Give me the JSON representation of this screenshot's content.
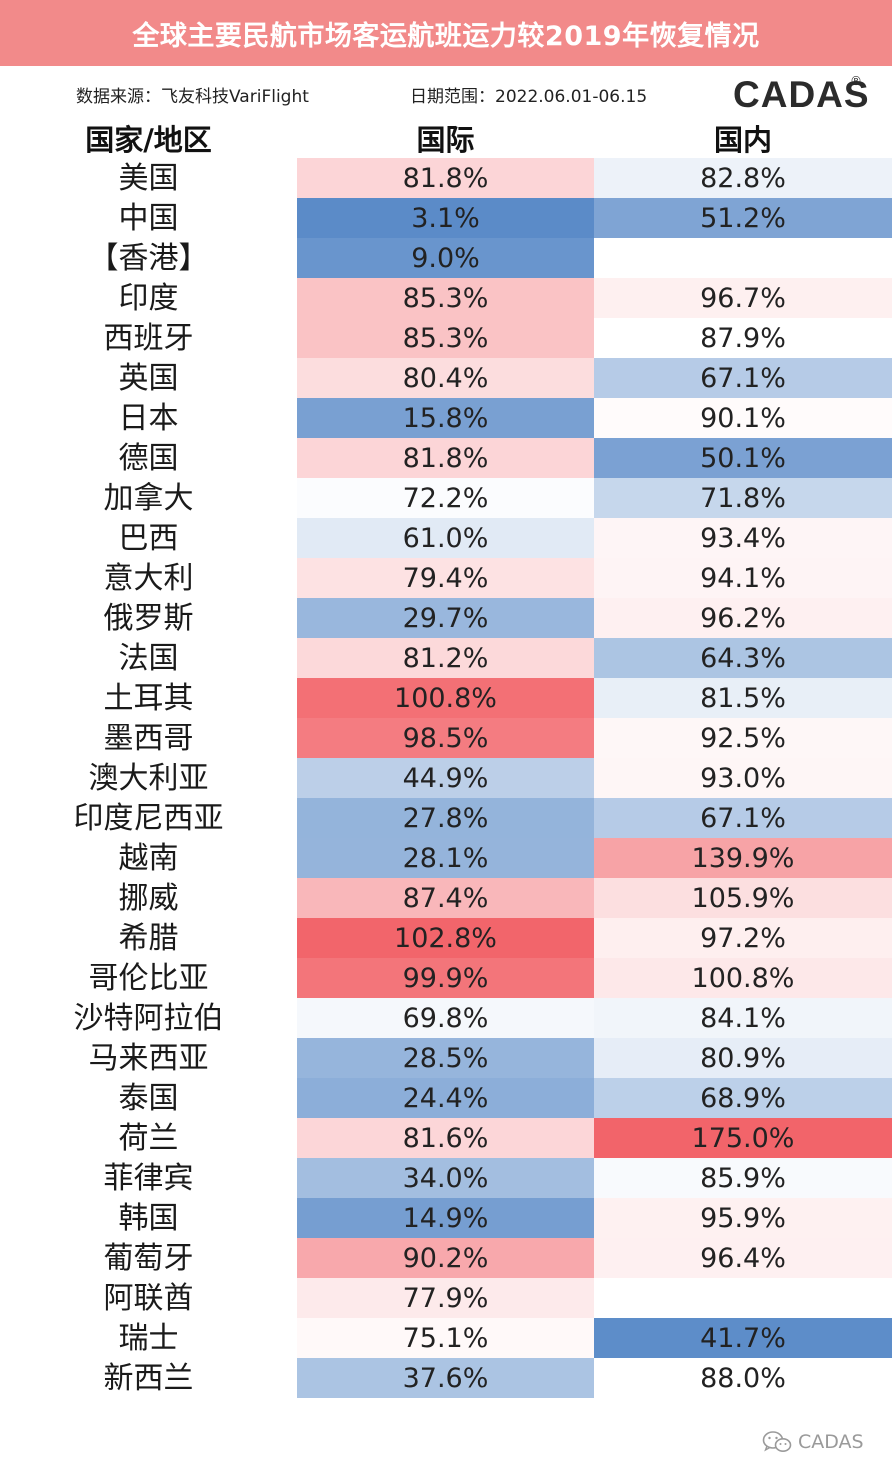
{
  "title": "全球主要民航市场客运航班运力较2019年恢复情况",
  "source": "数据来源：飞友科技VariFlight",
  "date_range": "日期范围：2022.06.01-06.15",
  "logo": {
    "text": "CADAS",
    "registered": "®"
  },
  "watermark": "CADAS",
  "colors": {
    "title_bg": "#f28a8a",
    "scale_low": "#5b8bc8",
    "scale_mid": "#ffffff",
    "scale_high": "#f2646a"
  },
  "chart_data": {
    "type": "table",
    "columns": [
      "国家/地区",
      "国际",
      "国内"
    ],
    "rows": [
      {
        "region": "美国",
        "intl": "81.8%",
        "dom": "82.8%"
      },
      {
        "region": "中国",
        "intl": "3.1%",
        "dom": "51.2%"
      },
      {
        "region": "【香港】",
        "intl": "9.0%",
        "dom": ""
      },
      {
        "region": "印度",
        "intl": "85.3%",
        "dom": "96.7%"
      },
      {
        "region": "西班牙",
        "intl": "85.3%",
        "dom": "87.9%"
      },
      {
        "region": "英国",
        "intl": "80.4%",
        "dom": "67.1%"
      },
      {
        "region": "日本",
        "intl": "15.8%",
        "dom": "90.1%"
      },
      {
        "region": "德国",
        "intl": "81.8%",
        "dom": "50.1%"
      },
      {
        "region": "加拿大",
        "intl": "72.2%",
        "dom": "71.8%"
      },
      {
        "region": "巴西",
        "intl": "61.0%",
        "dom": "93.4%"
      },
      {
        "region": "意大利",
        "intl": "79.4%",
        "dom": "94.1%"
      },
      {
        "region": "俄罗斯",
        "intl": "29.7%",
        "dom": "96.2%"
      },
      {
        "region": "法国",
        "intl": "81.2%",
        "dom": "64.3%"
      },
      {
        "region": "土耳其",
        "intl": "100.8%",
        "dom": "81.5%"
      },
      {
        "region": "墨西哥",
        "intl": "98.5%",
        "dom": "92.5%"
      },
      {
        "region": "澳大利亚",
        "intl": "44.9%",
        "dom": "93.0%"
      },
      {
        "region": "印度尼西亚",
        "intl": "27.8%",
        "dom": "67.1%"
      },
      {
        "region": "越南",
        "intl": "28.1%",
        "dom": "139.9%"
      },
      {
        "region": "挪威",
        "intl": "87.4%",
        "dom": "105.9%"
      },
      {
        "region": "希腊",
        "intl": "102.8%",
        "dom": "97.2%"
      },
      {
        "region": "哥伦比亚",
        "intl": "99.9%",
        "dom": "100.8%"
      },
      {
        "region": "沙特阿拉伯",
        "intl": "69.8%",
        "dom": "84.1%"
      },
      {
        "region": "马来西亚",
        "intl": "28.5%",
        "dom": "80.9%"
      },
      {
        "region": "泰国",
        "intl": "24.4%",
        "dom": "68.9%"
      },
      {
        "region": "荷兰",
        "intl": "81.6%",
        "dom": "175.0%"
      },
      {
        "region": "菲律宾",
        "intl": "34.0%",
        "dom": "85.9%"
      },
      {
        "region": "韩国",
        "intl": "14.9%",
        "dom": "95.9%"
      },
      {
        "region": "葡萄牙",
        "intl": "90.2%",
        "dom": "96.4%"
      },
      {
        "region": "阿联酋",
        "intl": "77.9%",
        "dom": ""
      },
      {
        "region": "瑞士",
        "intl": "75.1%",
        "dom": "41.7%"
      },
      {
        "region": "新西兰",
        "intl": "37.6%",
        "dom": "88.0%"
      }
    ]
  }
}
